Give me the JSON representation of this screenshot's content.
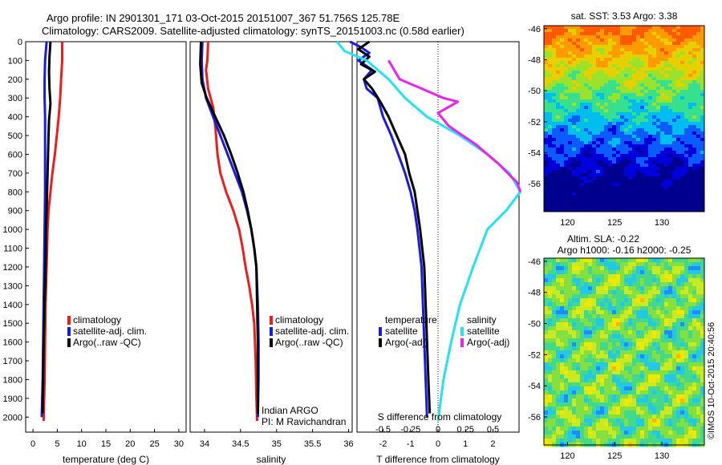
{
  "header": {
    "line1": "Argo profile: IN 2901301_171 03-Oct-2015 20151007_367 51.756S 125.78E",
    "line2": "Climatology: CARS2009. Satellite-adjusted climatology: synTS_20151003.nc (0.58d earlier)"
  },
  "colors": {
    "climatology": "#ee1c1c",
    "satellite": "#1a1ae6",
    "argo": "#000000",
    "sat_salinity": "#22e4f0",
    "argo_adj_salinity": "#ee22ee"
  },
  "chart_data": [
    {
      "id": "temperature",
      "type": "line",
      "xlabel": "temperature (deg C)",
      "xlim": [
        -1.5,
        31.5
      ],
      "xticks": [
        0,
        5,
        10,
        15,
        20,
        25,
        30
      ],
      "ylim": [
        2080,
        0
      ],
      "yticks": [
        0,
        100,
        200,
        300,
        400,
        500,
        600,
        700,
        800,
        900,
        1000,
        1100,
        1200,
        1300,
        1400,
        1500,
        1600,
        1700,
        1800,
        1900,
        2000
      ],
      "legend": [
        "climatology",
        "satellite-adj. clim.",
        "Argo(..raw -QC)"
      ],
      "series": [
        {
          "name": "climatology",
          "color": "#ee1c1c",
          "points": [
            [
              6.0,
              0
            ],
            [
              6.0,
              100
            ],
            [
              5.8,
              200
            ],
            [
              5.6,
              300
            ],
            [
              5.3,
              400
            ],
            [
              4.9,
              500
            ],
            [
              4.5,
              600
            ],
            [
              4.0,
              700
            ],
            [
              3.6,
              800
            ],
            [
              3.2,
              900
            ],
            [
              3.0,
              1000
            ],
            [
              2.8,
              1200
            ],
            [
              2.6,
              1400
            ],
            [
              2.5,
              1600
            ],
            [
              2.4,
              1800
            ],
            [
              2.2,
              2020
            ]
          ]
        },
        {
          "name": "satellite-adj. clim.",
          "color": "#1a1ae6",
          "points": [
            [
              2.8,
              0
            ],
            [
              2.5,
              100
            ],
            [
              2.4,
              200
            ],
            [
              2.4,
              300
            ],
            [
              2.5,
              400
            ],
            [
              2.5,
              600
            ],
            [
              2.5,
              800
            ],
            [
              2.4,
              1000
            ],
            [
              2.3,
              1200
            ],
            [
              2.2,
              1400
            ],
            [
              2.1,
              1600
            ],
            [
              2.0,
              1800
            ],
            [
              1.8,
              2000
            ]
          ]
        },
        {
          "name": "Argo(..raw -QC)",
          "color": "#000000",
          "points": [
            [
              3.6,
              0
            ],
            [
              3.4,
              80
            ],
            [
              3.3,
              160
            ],
            [
              3.4,
              250
            ],
            [
              3.6,
              330
            ],
            [
              3.3,
              420
            ],
            [
              3.2,
              500
            ],
            [
              3.1,
              600
            ],
            [
              3.0,
              700
            ],
            [
              2.9,
              800
            ],
            [
              2.7,
              1000
            ],
            [
              2.6,
              1200
            ],
            [
              2.4,
              1400
            ],
            [
              2.2,
              1600
            ],
            [
              2.1,
              1800
            ],
            [
              2.0,
              1980
            ]
          ]
        }
      ]
    },
    {
      "id": "salinity",
      "type": "line",
      "xlabel": "salinity",
      "xlim": [
        33.8,
        36.05
      ],
      "xticks": [
        34,
        34.5,
        35,
        35.5,
        36
      ],
      "ylim": [
        2080,
        0
      ],
      "legend": [
        "climatology",
        "satellite-adj. clim.",
        "Argo(..raw -QC)"
      ],
      "annotation": [
        "Indian ARGO",
        "PI: M Ravichandran"
      ],
      "series": [
        {
          "name": "climatology",
          "color": "#ee1c1c",
          "points": [
            [
              34.05,
              0
            ],
            [
              34.04,
              100
            ],
            [
              34.02,
              150
            ],
            [
              34.05,
              250
            ],
            [
              34.12,
              350
            ],
            [
              34.15,
              450
            ],
            [
              34.18,
              600
            ],
            [
              34.22,
              700
            ],
            [
              34.3,
              800
            ],
            [
              34.4,
              900
            ],
            [
              34.48,
              1000
            ],
            [
              34.53,
              1100
            ],
            [
              34.57,
              1200
            ],
            [
              34.62,
              1300
            ],
            [
              34.66,
              1400
            ],
            [
              34.69,
              1500
            ],
            [
              34.71,
              1700
            ],
            [
              34.72,
              1900
            ],
            [
              34.73,
              2020
            ]
          ]
        },
        {
          "name": "satellite-adj. clim.",
          "color": "#1a1ae6",
          "points": [
            [
              33.97,
              0
            ],
            [
              33.96,
              100
            ],
            [
              33.97,
              200
            ],
            [
              34.02,
              300
            ],
            [
              34.12,
              400
            ],
            [
              34.22,
              500
            ],
            [
              34.32,
              600
            ],
            [
              34.42,
              700
            ],
            [
              34.52,
              800
            ],
            [
              34.59,
              900
            ],
            [
              34.65,
              1000
            ],
            [
              34.69,
              1100
            ],
            [
              34.72,
              1200
            ],
            [
              34.74,
              1400
            ],
            [
              34.75,
              1600
            ],
            [
              34.75,
              1800
            ],
            [
              34.74,
              2000
            ]
          ]
        },
        {
          "name": "Argo(..raw -QC)",
          "color": "#000000",
          "points": [
            [
              33.95,
              0
            ],
            [
              33.94,
              120
            ],
            [
              33.96,
              220
            ],
            [
              34.03,
              300
            ],
            [
              34.15,
              400
            ],
            [
              34.27,
              500
            ],
            [
              34.37,
              600
            ],
            [
              34.46,
              700
            ],
            [
              34.54,
              800
            ],
            [
              34.6,
              900
            ],
            [
              34.65,
              1000
            ],
            [
              34.69,
              1100
            ],
            [
              34.72,
              1200
            ],
            [
              34.73,
              1400
            ],
            [
              34.74,
              1600
            ],
            [
              34.74,
              1800
            ],
            [
              34.74,
              1980
            ]
          ]
        }
      ]
    },
    {
      "id": "difference",
      "type": "line",
      "xlabel": "T difference from climatology",
      "xlabel_top": "S difference from climatology",
      "xlim": [
        -2.95,
        2.95
      ],
      "xticks": [
        -2,
        -1,
        0,
        1,
        2
      ],
      "xticks_S": [
        {
          "v": -0.5,
          "label": "-0.5"
        },
        {
          "v": -0.25,
          "label": "-0.25"
        },
        {
          "v": 0,
          "label": "0"
        },
        {
          "v": 0.25,
          "label": "0.25"
        },
        {
          "v": 0.5,
          "label": "0.5"
        }
      ],
      "ylim": [
        2080,
        0
      ],
      "legend_left_title": "temperature",
      "legend_left": [
        "satellite",
        "Argo(-adj)"
      ],
      "legend_right_title": "salinity",
      "legend_right": [
        "satellite",
        "Argo(-adj)"
      ],
      "series": [
        {
          "name": "satellite",
          "group": "temperature",
          "color": "#1a1ae6",
          "points": [
            [
              -3.2,
              0
            ],
            [
              -2.8,
              30
            ],
            [
              -2.5,
              60
            ],
            [
              -2.9,
              100
            ],
            [
              -2.4,
              150
            ],
            [
              -2.7,
              200
            ],
            [
              -2.6,
              250
            ],
            [
              -2.2,
              300
            ],
            [
              -2.0,
              400
            ],
            [
              -1.7,
              500
            ],
            [
              -1.45,
              600
            ],
            [
              -1.2,
              700
            ],
            [
              -1.0,
              800
            ],
            [
              -0.85,
              900
            ],
            [
              -0.75,
              1000
            ],
            [
              -0.6,
              1200
            ],
            [
              -0.55,
              1400
            ],
            [
              -0.5,
              1600
            ],
            [
              -0.45,
              1800
            ],
            [
              -0.4,
              2000
            ]
          ]
        },
        {
          "name": "Argo(-adj)",
          "group": "temperature",
          "color": "#000000",
          "points": [
            [
              -2.5,
              0
            ],
            [
              -2.9,
              40
            ],
            [
              -2.5,
              80
            ],
            [
              -2.8,
              120
            ],
            [
              -2.3,
              160
            ],
            [
              -2.7,
              200
            ],
            [
              -2.4,
              250
            ],
            [
              -2.1,
              320
            ],
            [
              -1.8,
              400
            ],
            [
              -1.5,
              500
            ],
            [
              -1.2,
              600
            ],
            [
              -1.05,
              700
            ],
            [
              -0.85,
              800
            ],
            [
              -0.75,
              900
            ],
            [
              -0.65,
              1000
            ],
            [
              -0.5,
              1200
            ],
            [
              -0.45,
              1400
            ],
            [
              -0.4,
              1600
            ],
            [
              -0.35,
              1800
            ],
            [
              -0.3,
              1980
            ]
          ]
        },
        {
          "name": "satellite",
          "group": "salinity",
          "color": "#22e4f0",
          "points": [
            [
              -0.92,
              0
            ],
            [
              -0.85,
              50
            ],
            [
              -0.65,
              100
            ],
            [
              -0.45,
              200
            ],
            [
              -0.3,
              300
            ],
            [
              -0.1,
              400
            ],
            [
              0.2,
              500
            ],
            [
              0.45,
              600
            ],
            [
              0.65,
              700
            ],
            [
              0.75,
              800
            ],
            [
              0.62,
              900
            ],
            [
              0.45,
              1000
            ],
            [
              0.32,
              1200
            ],
            [
              0.2,
              1400
            ],
            [
              0.12,
              1600
            ],
            [
              0.05,
              1800
            ],
            [
              0.0,
              2020
            ]
          ]
        },
        {
          "name": "Argo(-adj)",
          "group": "salinity",
          "color": "#ee22ee",
          "points": [
            [
              -0.45,
              100
            ],
            [
              -0.35,
              200
            ],
            [
              0.05,
              300
            ],
            [
              0.18,
              320
            ],
            [
              0.0,
              380
            ],
            [
              0.1,
              450
            ],
            [
              0.35,
              550
            ],
            [
              0.55,
              650
            ],
            [
              0.72,
              750
            ],
            [
              0.75,
              800
            ]
          ]
        }
      ]
    },
    {
      "id": "sst_map",
      "type": "heatmap",
      "title": "sat. SST: 3.53 Argo: 3.38",
      "xticks": [
        120,
        125,
        130
      ],
      "yticks": [
        -46,
        -48,
        -50,
        -52,
        -54,
        -56
      ],
      "xlim": [
        117.5,
        134.5
      ],
      "ylim": [
        -57.8,
        -45.8
      ],
      "palette": [
        "#00008f",
        "#0000dd",
        "#0b5cff",
        "#00bdf0",
        "#36e08f",
        "#9be22c",
        "#e6d000",
        "#ff9a00",
        "#ff5a00"
      ]
    },
    {
      "id": "sla_map",
      "type": "heatmap",
      "title_line1": "Altim. SLA: -0.22",
      "title_line2": "Argo h1000: -0.16 h2000: -0.25",
      "xticks": [
        120,
        125,
        130
      ],
      "yticks": [
        -46,
        -48,
        -50,
        -52,
        -54,
        -56
      ],
      "xlim": [
        117.5,
        134.5
      ],
      "ylim": [
        -57.8,
        -45.8
      ],
      "palette": [
        "#1c8cff",
        "#22c8e6",
        "#43d98c",
        "#84e040",
        "#c9ea20",
        "#f0e800",
        "#ffb400"
      ]
    }
  ],
  "footer": {
    "watermark": "©IMOS 10-Oct-2015 20:40:56"
  }
}
